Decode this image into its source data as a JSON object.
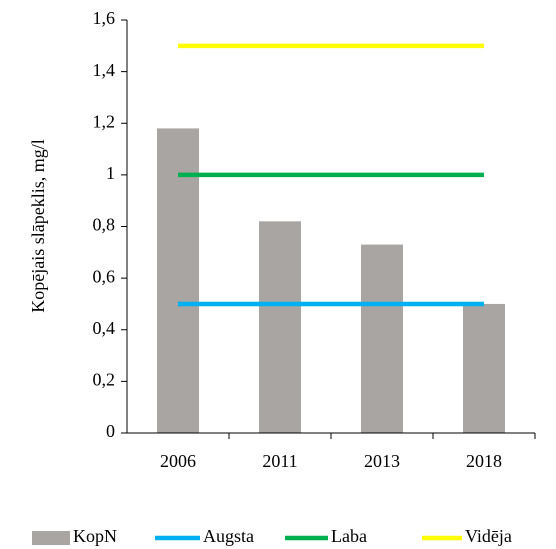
{
  "chart_data": {
    "type": "bar",
    "y_label": "Kopējais slāpeklis, mg/l",
    "categories": [
      "2006",
      "2011",
      "2013",
      "2018"
    ],
    "series": [
      {
        "name": "KopN",
        "type": "bar",
        "color": "#a9a5a3",
        "values": [
          1.18,
          0.82,
          0.73,
          0.5
        ]
      },
      {
        "name": "Augsta",
        "type": "line",
        "color": "#00b0f0",
        "values": [
          0.5,
          0.5,
          0.5,
          0.5
        ]
      },
      {
        "name": "Laba",
        "type": "line",
        "color": "#00b050",
        "values": [
          1,
          1,
          1,
          1
        ]
      },
      {
        "name": "Vidēja",
        "type": "line",
        "color": "#ffff00",
        "values": [
          1.5,
          1.5,
          1.5,
          1.5
        ]
      }
    ],
    "ylim": [
      0,
      1.6
    ],
    "yticks": [
      0,
      {
        "value": 0.2,
        "label": "0,2"
      },
      {
        "value": 0.4,
        "label": "0,4"
      },
      {
        "value": 0.6,
        "label": "0,6"
      },
      {
        "value": 0.8,
        "label": "0,8"
      },
      1,
      {
        "value": 1.2,
        "label": "1,2"
      },
      {
        "value": 1.4,
        "label": "1,4"
      },
      {
        "value": 1.6,
        "label": "1,6"
      }
    ],
    "grid": false,
    "legend": "bottom"
  }
}
